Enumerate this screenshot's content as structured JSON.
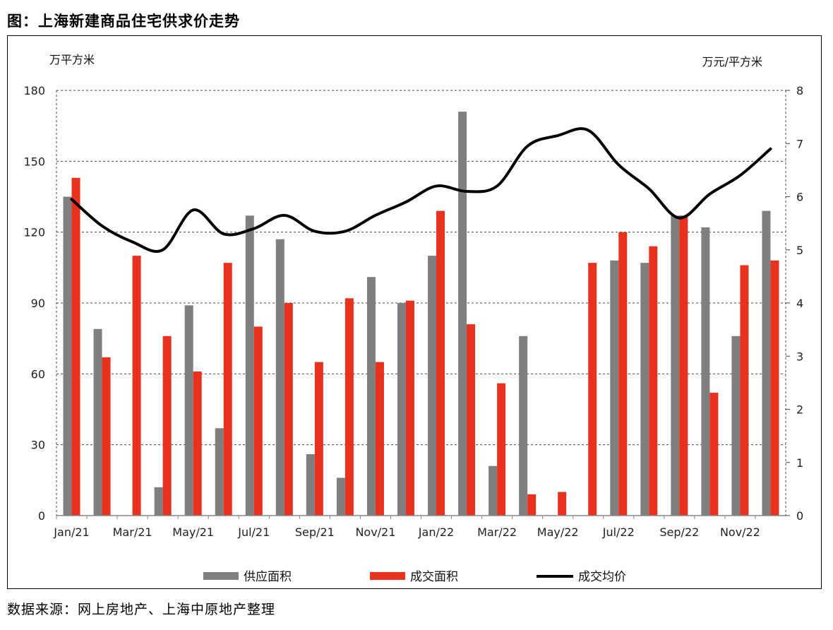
{
  "title": "图：上海新建商品住宅供求价走势",
  "source": "数据来源：网上房地产、上海中原地产整理",
  "chart_data": {
    "type": "bar",
    "y_left_unit": "万平方米",
    "y_right_unit": "万元/平方米",
    "y_left_range": [
      0,
      180
    ],
    "y_left_ticks": [
      "0",
      "30",
      "60",
      "90",
      "120",
      "150",
      "180"
    ],
    "y_right_range": [
      0,
      8
    ],
    "y_right_ticks": [
      "0",
      "1",
      "2",
      "3",
      "4",
      "5",
      "6",
      "7",
      "8"
    ],
    "x_tick_labels": [
      "Jan/21",
      "Mar/21",
      "May/21",
      "Jul/21",
      "Sep/21",
      "Nov/21",
      "Jan/22",
      "Mar/22",
      "May/22",
      "Jul/22",
      "Sep/22",
      "Nov/22"
    ],
    "categories": [
      "Jan/21",
      "Feb/21",
      "Mar/21",
      "Apr/21",
      "May/21",
      "Jun/21",
      "Jul/21",
      "Aug/21",
      "Sep/21",
      "Oct/21",
      "Nov/21",
      "Dec/21",
      "Jan/22",
      "Feb/22",
      "Mar/22",
      "Apr/22",
      "May/22",
      "Jun/22",
      "Jul/22",
      "Aug/22",
      "Sep/22",
      "Oct/22",
      "Nov/22",
      "Dec/22"
    ],
    "grid": "horizontal dashed",
    "legend_position": "bottom",
    "series": [
      {
        "name": "供应面积",
        "type": "bar",
        "axis": "left",
        "color": "#7f7f7f",
        "values": [
          135,
          79,
          0,
          12,
          89,
          37,
          127,
          117,
          26,
          16,
          101,
          90,
          110,
          171,
          21,
          76,
          0,
          0,
          108,
          107,
          127,
          122,
          76,
          129
        ]
      },
      {
        "name": "成交面积",
        "type": "bar",
        "axis": "left",
        "color": "#e8321e",
        "values": [
          143,
          67,
          110,
          76,
          61,
          107,
          80,
          90,
          65,
          92,
          65,
          91,
          129,
          81,
          56,
          9,
          10,
          107,
          120,
          114,
          127,
          52,
          106,
          108
        ]
      },
      {
        "name": "成交均价",
        "type": "line",
        "axis": "right",
        "color": "#000000",
        "values": [
          5.95,
          5.45,
          5.15,
          5.0,
          5.75,
          5.3,
          5.4,
          5.65,
          5.35,
          5.35,
          5.65,
          5.9,
          6.2,
          6.1,
          6.2,
          6.95,
          7.15,
          7.25,
          6.6,
          6.15,
          5.6,
          6.05,
          6.4,
          6.9
        ]
      }
    ]
  }
}
